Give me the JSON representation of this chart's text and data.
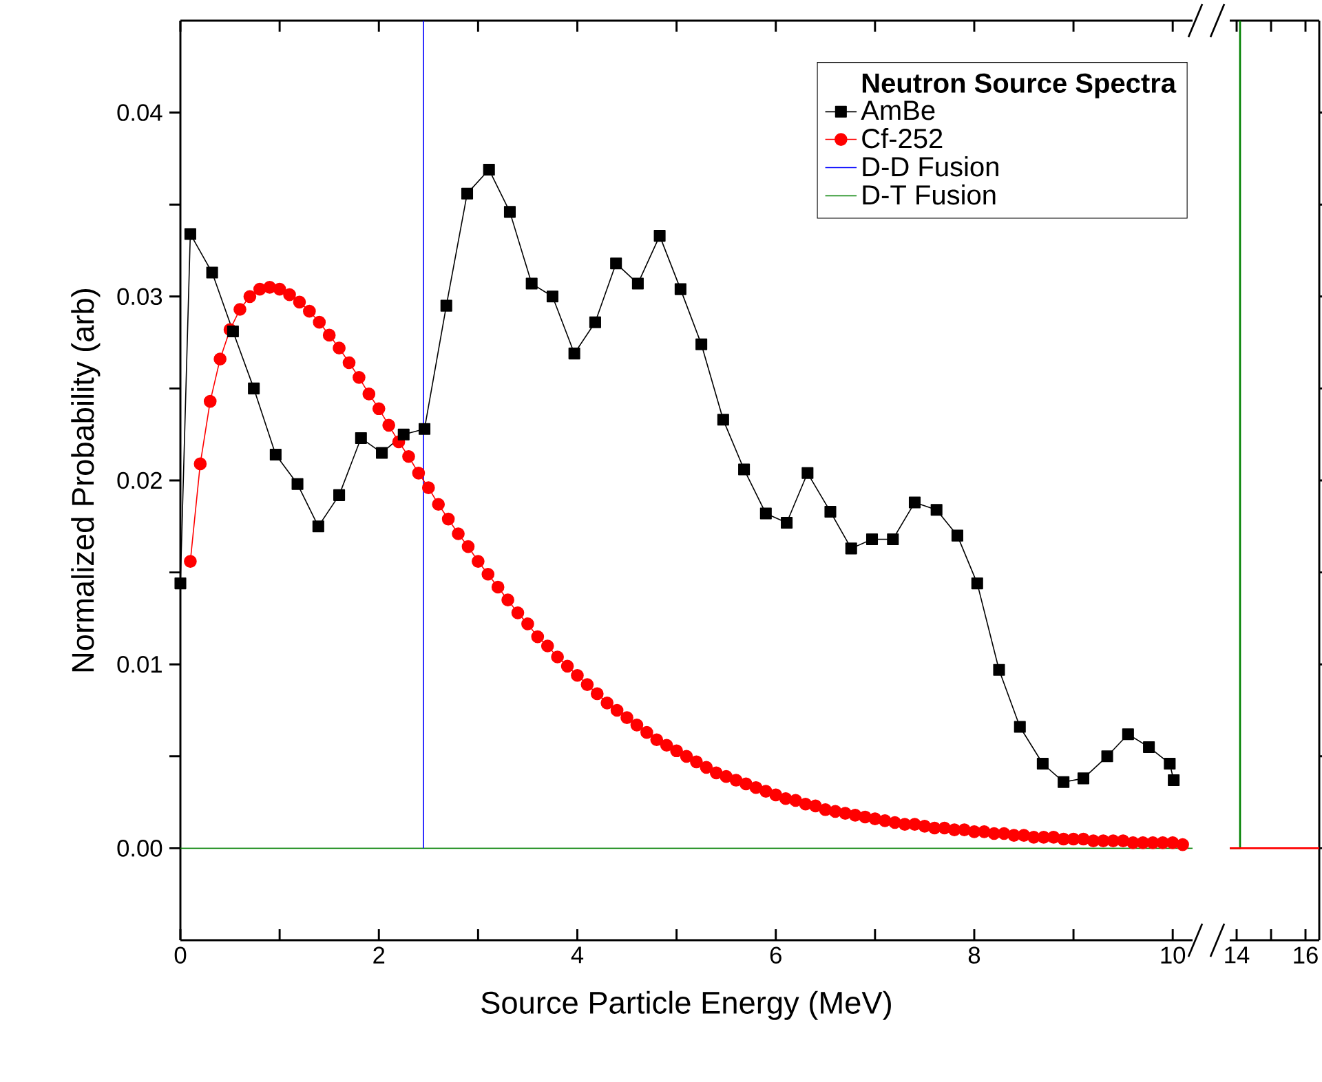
{
  "chart_data": [
    {
      "type": "line",
      "xlabel": "Source Particle Energy (MeV)",
      "ylabel": "Normalized Probability (arb)",
      "legend_title": "Neutron Source Spectra",
      "legend": "top right",
      "xlim": [
        0,
        10.2
      ],
      "ylim": [
        -0.005,
        0.045
      ],
      "xticks": [
        0,
        {
          "value": 1,
          "label": null
        },
        2,
        {
          "value": 3,
          "label": null
        },
        4,
        {
          "value": 5,
          "label": null
        },
        6,
        {
          "value": 7,
          "label": null
        },
        8,
        {
          "value": 9,
          "label": null
        },
        10
      ],
      "yticks": [
        {
          "value": 0,
          "label": "0.00"
        },
        {
          "value": 0.005,
          "label": null
        },
        {
          "value": 0.01,
          "label": "0.01"
        },
        {
          "value": 0.015,
          "label": null
        },
        {
          "value": 0.02,
          "label": "0.02"
        },
        {
          "value": 0.025,
          "label": null
        },
        {
          "value": 0.03,
          "label": "0.03"
        },
        {
          "value": 0.035,
          "label": null
        },
        {
          "value": 0.04,
          "label": "0.04"
        }
      ],
      "series": [
        {
          "name": "AmBe",
          "color": "#000000",
          "marker": "square",
          "x": [
            0,
            0.1,
            0.32,
            0.53,
            0.74,
            0.96,
            1.18,
            1.39,
            1.6,
            1.82,
            2.03,
            2.25,
            2.46,
            2.68,
            2.89,
            3.11,
            3.32,
            3.54,
            3.75,
            3.97,
            4.18,
            4.39,
            4.61,
            4.83,
            5.04,
            5.25,
            5.47,
            5.68,
            5.9,
            6.11,
            6.32,
            6.55,
            6.76,
            6.97,
            7.18,
            7.4,
            7.62,
            7.83,
            8.03,
            8.25,
            8.46,
            8.69,
            8.9,
            9.1,
            9.34,
            9.55,
            9.76,
            9.97,
            10.01
          ],
          "values": [
            0.0144,
            0.0334,
            0.0313,
            0.0281,
            0.025,
            0.0214,
            0.0198,
            0.0175,
            0.0192,
            0.0223,
            0.0215,
            0.0225,
            0.0228,
            0.0295,
            0.0356,
            0.0369,
            0.0346,
            0.0307,
            0.03,
            0.0269,
            0.0286,
            0.0318,
            0.0307,
            0.0333,
            0.0304,
            0.0274,
            0.0233,
            0.0206,
            0.0182,
            0.0177,
            0.0204,
            0.0183,
            0.0163,
            0.0168,
            0.0168,
            0.0188,
            0.0184,
            0.017,
            0.0144,
            0.0097,
            0.0066,
            0.0046,
            0.0036,
            0.0038,
            0.005,
            0.0062,
            0.0055,
            0.0046,
            0.0037
          ]
        },
        {
          "name": "Cf-252",
          "color": "#ff0000",
          "marker": "circle",
          "x": [
            0.1,
            0.2,
            0.3,
            0.4,
            0.5,
            0.6,
            0.7,
            0.8,
            0.9,
            1.0,
            1.1,
            1.2,
            1.3,
            1.4,
            1.5,
            1.6,
            1.7,
            1.8,
            1.9,
            2.0,
            2.1,
            2.2,
            2.3,
            2.4,
            2.5,
            2.6,
            2.7,
            2.8,
            2.9,
            3.0,
            3.1,
            3.2,
            3.3,
            3.4,
            3.5,
            3.6,
            3.7,
            3.8,
            3.9,
            4.0,
            4.1,
            4.2,
            4.3,
            4.4,
            4.5,
            4.6,
            4.7,
            4.8,
            4.9,
            5.0,
            5.1,
            5.2,
            5.3,
            5.4,
            5.5,
            5.6,
            5.7,
            5.8,
            5.9,
            6.0,
            6.1,
            6.2,
            6.3,
            6.4,
            6.5,
            6.6,
            6.7,
            6.8,
            6.9,
            7.0,
            7.1,
            7.2,
            7.3,
            7.4,
            7.5,
            7.6,
            7.7,
            7.8,
            7.9,
            8.0,
            8.1,
            8.2,
            8.3,
            8.4,
            8.5,
            8.6,
            8.7,
            8.8,
            8.9,
            9.0,
            9.1,
            9.2,
            9.3,
            9.4,
            9.5,
            9.6,
            9.7,
            9.8,
            9.9,
            10.0,
            10.1
          ],
          "values": [
            0.0156,
            0.0209,
            0.0243,
            0.0266,
            0.0282,
            0.0293,
            0.03,
            0.0304,
            0.0305,
            0.0304,
            0.0301,
            0.0297,
            0.0292,
            0.0286,
            0.0279,
            0.0272,
            0.0264,
            0.0256,
            0.0247,
            0.0239,
            0.023,
            0.0221,
            0.0213,
            0.0204,
            0.0196,
            0.0187,
            0.0179,
            0.0171,
            0.0164,
            0.0156,
            0.0149,
            0.0142,
            0.0135,
            0.0128,
            0.0122,
            0.0115,
            0.011,
            0.0104,
            0.0099,
            0.0094,
            0.0089,
            0.0084,
            0.0079,
            0.0075,
            0.0071,
            0.0067,
            0.0063,
            0.0059,
            0.0056,
            0.0053,
            0.005,
            0.0047,
            0.0044,
            0.0041,
            0.0039,
            0.0037,
            0.0035,
            0.0033,
            0.0031,
            0.0029,
            0.0027,
            0.0026,
            0.0024,
            0.0023,
            0.0021,
            0.002,
            0.0019,
            0.0018,
            0.0017,
            0.0016,
            0.0015,
            0.0014,
            0.0013,
            0.0013,
            0.0012,
            0.0011,
            0.0011,
            0.001,
            0.001,
            0.0009,
            0.0009,
            0.0008,
            0.0008,
            0.0007,
            0.0007,
            0.0006,
            0.0006,
            0.0006,
            0.0005,
            0.0005,
            0.0005,
            0.0004,
            0.0004,
            0.0004,
            0.0004,
            0.0003,
            0.0003,
            0.0003,
            0.0003,
            0.0003,
            0.0002
          ]
        },
        {
          "name": "D-D Fusion",
          "color": "#0000ff",
          "marker": "none",
          "x": [
            2.45,
            2.45
          ],
          "values": [
            0,
            0.045
          ]
        },
        {
          "name": "D-T Fusion",
          "color": "#008000",
          "marker": "none",
          "x": [
            0,
            10.2
          ],
          "values": [
            0,
            0
          ]
        }
      ]
    },
    {
      "type": "line",
      "xlim": [
        13.8,
        16.4
      ],
      "ylim": [
        -0.005,
        0.045
      ],
      "tick_labels": "x",
      "xticks": [
        14,
        {
          "value": 15,
          "label": null
        },
        16
      ],
      "yticks": [
        0,
        0.005,
        0.01,
        0.015,
        0.02,
        0.025,
        0.03,
        0.035,
        0.04
      ],
      "series": [
        {
          "color": "#ff0000",
          "marker": "none",
          "x": [
            13.8,
            16.4
          ],
          "values": [
            0,
            0
          ]
        },
        {
          "color": "#008000",
          "marker": "none",
          "x": [
            13.8,
            14.1,
            14.1
          ],
          "values": [
            0,
            0,
            0.045
          ]
        }
      ]
    }
  ]
}
